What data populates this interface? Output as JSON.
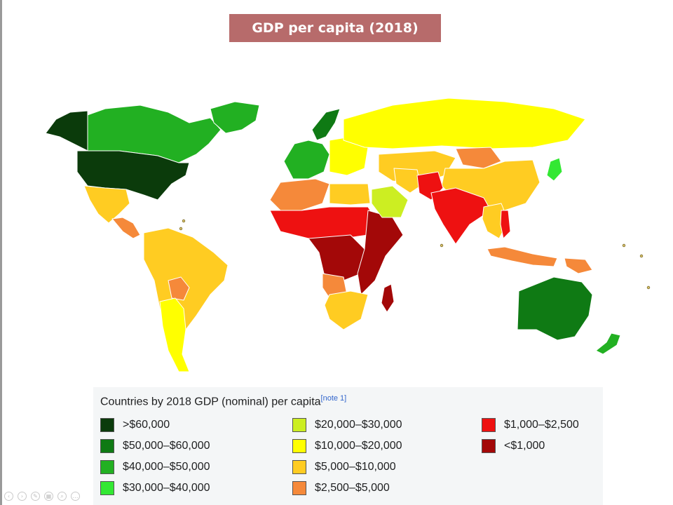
{
  "slide": {
    "title": "GDP per capita (2018)"
  },
  "legend": {
    "heading": "Countries by 2018 GDP (nominal) per capita",
    "note": "[note 1]",
    "items": [
      {
        "label": ">$60,000",
        "color": "#0b3b0b"
      },
      {
        "label": "$50,000–$60,000",
        "color": "#0f7a14"
      },
      {
        "label": "$40,000–$50,000",
        "color": "#22b022"
      },
      {
        "label": "$30,000–$40,000",
        "color": "#33e833"
      },
      {
        "label": "$20,000–$30,000",
        "color": "#ccee22"
      },
      {
        "label": "$10,000–$20,000",
        "color": "#ffff00"
      },
      {
        "label": "$5,000–$10,000",
        "color": "#ffcc22"
      },
      {
        "label": "$2,500–$5,000",
        "color": "#f5893a"
      },
      {
        "label": "$1,000–$2,500",
        "color": "#ee1111"
      },
      {
        "label": "<$1,000",
        "color": "#a30808"
      }
    ]
  },
  "map": {
    "ocean_color": "#ffffff",
    "border_color": "#ffffff",
    "no_data_color": "#c8c8c8",
    "regions": [
      {
        "name": "Canada",
        "tier": "$40,000–$50,000"
      },
      {
        "name": "Alaska",
        "tier": ">$60,000"
      },
      {
        "name": "United States",
        "tier": ">$60,000"
      },
      {
        "name": "Greenland",
        "tier": "$40,000–$50,000"
      },
      {
        "name": "Mexico",
        "tier": "$5,000–$10,000"
      },
      {
        "name": "Central America",
        "tier": "$2,500–$5,000"
      },
      {
        "name": "South America",
        "tier": "$5,000–$10,000"
      },
      {
        "name": "Bolivia",
        "tier": "$2,500–$5,000"
      },
      {
        "name": "Chile",
        "tier": "$10,000–$20,000"
      },
      {
        "name": "Western Europe",
        "tier": "$40,000–$50,000"
      },
      {
        "name": "Norway",
        "tier": "$50,000–$60,000"
      },
      {
        "name": "Eastern Europe",
        "tier": "$10,000–$20,000"
      },
      {
        "name": "Russia",
        "tier": "$10,000–$20,000"
      },
      {
        "name": "Central Asia",
        "tier": "$5,000–$10,000"
      },
      {
        "name": "Mongolia",
        "tier": "$2,500–$5,000"
      },
      {
        "name": "China",
        "tier": "$5,000–$10,000"
      },
      {
        "name": "Japan",
        "tier": "$30,000–$40,000"
      },
      {
        "name": "North Africa",
        "tier": "$2,500–$5,000"
      },
      {
        "name": "Libya",
        "tier": "$5,000–$10,000"
      },
      {
        "name": "Sahel",
        "tier": "$1,000–$2,500"
      },
      {
        "name": "Central Africa",
        "tier": "<$1,000"
      },
      {
        "name": "East Africa",
        "tier": "<$1,000"
      },
      {
        "name": "Angola",
        "tier": "$2,500–$5,000"
      },
      {
        "name": "Southern Africa",
        "tier": "$5,000–$10,000"
      },
      {
        "name": "Madagascar",
        "tier": "<$1,000"
      },
      {
        "name": "Saudi Arabia",
        "tier": "$20,000–$30,000"
      },
      {
        "name": "Iran",
        "tier": "$5,000–$10,000"
      },
      {
        "name": "Pakistan",
        "tier": "$1,000–$2,500"
      },
      {
        "name": "India",
        "tier": "$1,000–$2,500"
      },
      {
        "name": "Southeast Asia",
        "tier": "$5,000–$10,000"
      },
      {
        "name": "Vietnam",
        "tier": "$1,000–$2,500"
      },
      {
        "name": "Indonesia",
        "tier": "$2,500–$5,000"
      },
      {
        "name": "Papua New Guinea",
        "tier": "$2,500–$5,000"
      },
      {
        "name": "Australia",
        "tier": "$50,000–$60,000"
      },
      {
        "name": "New Zealand",
        "tier": "$40,000–$50,000"
      }
    ]
  }
}
